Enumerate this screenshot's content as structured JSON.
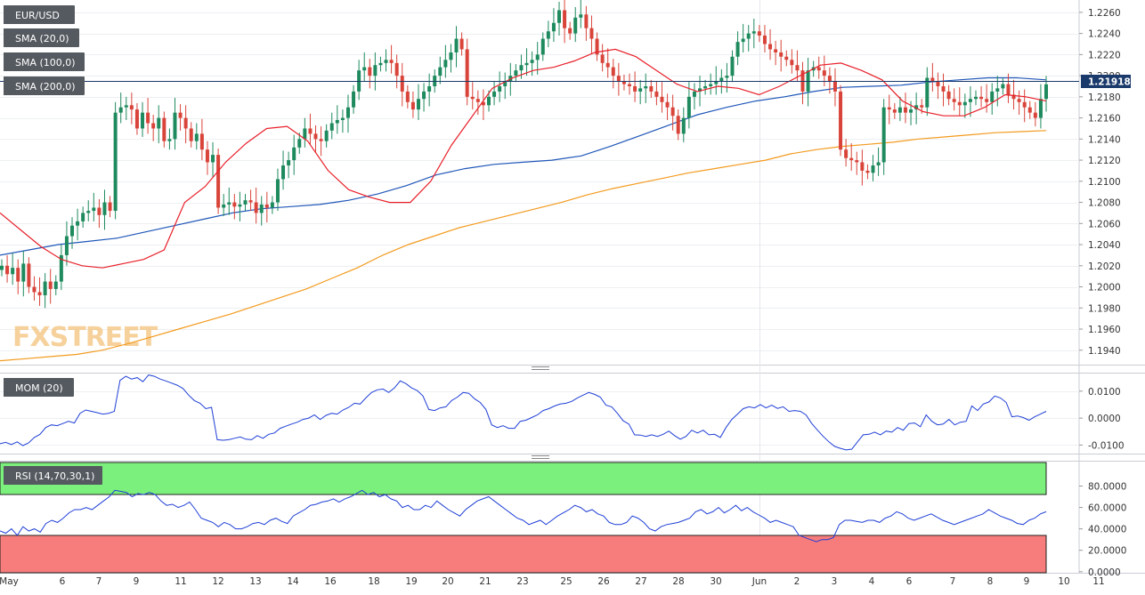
{
  "symbol_tag": "EUR/USD",
  "indicator_tags": [
    {
      "label": "SMA (20,0)",
      "color": "#e8202a"
    },
    {
      "label": "SMA (100,0)",
      "color": "#1f56b8"
    },
    {
      "label": "SMA (200,0)",
      "color": "#f39a1e"
    }
  ],
  "watermark": "FXSTREET",
  "last_price_label": "1.21918",
  "mom_tag": "MOM (20)",
  "rsi_tag": "RSI (14,70,30,1)",
  "colors": {
    "up": "#1e8a5e",
    "down": "#d9443a",
    "sma20": "#e8202a",
    "sma100": "#1f56b8",
    "sma200": "#f39a1e",
    "mom": "#1f3fd6",
    "rsi": "#1f3fd6",
    "overbought": "#7cf07c",
    "oversold": "#f77c7c",
    "price_line": "#1a3a6b"
  },
  "chart_data": [
    {
      "type": "candlestick",
      "title": "EUR/USD",
      "x_ticks": [
        "May",
        "6",
        "7",
        "9",
        "11",
        "12",
        "13",
        "14",
        "16",
        "18",
        "19",
        "20",
        "21",
        "23",
        "25",
        "26",
        "27",
        "28",
        "30",
        "Jun",
        "2",
        "3",
        "4",
        "6",
        "7",
        "8",
        "9",
        "10",
        "11"
      ],
      "y_ticks": [
        "1.2260",
        "1.2240",
        "1.2220",
        "1.2200",
        "1.2180",
        "1.2160",
        "1.2140",
        "1.2120",
        "1.2100",
        "1.2080",
        "1.2060",
        "1.2040",
        "1.2020",
        "1.2000",
        "1.1980",
        "1.1960",
        "1.1940"
      ],
      "ylim": [
        1.1928,
        1.227
      ],
      "last_price": 1.21918,
      "candles_close": [
        1.202,
        1.2012,
        1.2018,
        1.2005,
        1.2022,
        1.2,
        1.1995,
        1.1992,
        1.2005,
        1.1998,
        1.2005,
        1.203,
        1.2048,
        1.2058,
        1.2062,
        1.207,
        1.2072,
        1.2075,
        1.2068,
        1.208,
        1.2072,
        1.2165,
        1.217,
        1.2172,
        1.2168,
        1.215,
        1.2165,
        1.2155,
        1.215,
        1.216,
        1.2138,
        1.214,
        1.2165,
        1.216,
        1.215,
        1.2138,
        1.2145,
        1.213,
        1.2118,
        1.2125,
        1.2075,
        1.2078,
        1.208,
        1.2076,
        1.2078,
        1.2082,
        1.208,
        1.207,
        1.2078,
        1.2075,
        1.208,
        1.2102,
        1.2115,
        1.212,
        1.2132,
        1.214,
        1.215,
        1.2145,
        1.214,
        1.2138,
        1.2148,
        1.2155,
        1.2158,
        1.216,
        1.217,
        1.2185,
        1.2205,
        1.2208,
        1.22,
        1.221,
        1.2212,
        1.2215,
        1.2212,
        1.22,
        1.2185,
        1.2175,
        1.2168,
        1.2178,
        1.2185,
        1.219,
        1.22,
        1.2208,
        1.2215,
        1.2222,
        1.2235,
        1.2225,
        1.218,
        1.2178,
        1.2175,
        1.2172,
        1.218,
        1.2185,
        1.219,
        1.2195,
        1.22,
        1.2205,
        1.221,
        1.2212,
        1.2215,
        1.222,
        1.2235,
        1.2242,
        1.225,
        1.2262,
        1.2245,
        1.224,
        1.2255,
        1.2258,
        1.2245,
        1.2235,
        1.222,
        1.2212,
        1.2208,
        1.22,
        1.2195,
        1.2192,
        1.219,
        1.2185,
        1.2188,
        1.219,
        1.2185,
        1.218,
        1.2175,
        1.217,
        1.2162,
        1.2145,
        1.216,
        1.218,
        1.2185,
        1.2188,
        1.219,
        1.2192,
        1.2195,
        1.2198,
        1.22,
        1.2218,
        1.2232,
        1.2235,
        1.224,
        1.2242,
        1.2238,
        1.223,
        1.2225,
        1.2222,
        1.2218,
        1.2215,
        1.221,
        1.2205,
        1.2185,
        1.2205,
        1.2208,
        1.2205,
        1.22,
        1.2195,
        1.2185,
        1.213,
        1.2122,
        1.212,
        1.2118,
        1.211,
        1.2108,
        1.2115,
        1.2118,
        1.217,
        1.2168,
        1.2165,
        1.217,
        1.2165,
        1.2168,
        1.2172,
        1.217,
        1.2198,
        1.2195,
        1.219,
        1.2185,
        1.2178,
        1.2175,
        1.2172,
        1.2175,
        1.2178,
        1.218,
        1.2178,
        1.2175,
        1.2185,
        1.2188,
        1.2192,
        1.2182,
        1.2178,
        1.2175,
        1.217,
        1.2165,
        1.216,
        1.2178,
        1.21918
      ],
      "sma20": [
        1.207,
        1.2054,
        1.2038,
        1.2026,
        1.202,
        1.2018,
        1.2022,
        1.2026,
        1.2035,
        1.208,
        1.2095,
        1.2118,
        1.2136,
        1.215,
        1.2152,
        1.2138,
        1.211,
        1.2092,
        1.2085,
        1.208,
        1.208,
        1.21,
        1.2134,
        1.2161,
        1.2188,
        1.2198,
        1.2205,
        1.2208,
        1.2214,
        1.2222,
        1.2225,
        1.2218,
        1.2205,
        1.2192,
        1.2185,
        1.219,
        1.2188,
        1.2182,
        1.219,
        1.22,
        1.221,
        1.2212,
        1.2205,
        1.2196,
        1.2176,
        1.2166,
        1.2162,
        1.2162,
        1.217,
        1.2182,
        1.218,
        1.2176
      ],
      "sma100": [
        1.203,
        1.2035,
        1.204,
        1.2043,
        1.2046,
        1.2052,
        1.2058,
        1.2064,
        1.207,
        1.2074,
        1.2076,
        1.2078,
        1.2082,
        1.2088,
        1.2096,
        1.2106,
        1.2112,
        1.2116,
        1.2118,
        1.212,
        1.2124,
        1.2133,
        1.2143,
        1.2153,
        1.2163,
        1.217,
        1.2176,
        1.218,
        1.2185,
        1.2189,
        1.219,
        1.2191,
        1.2194,
        1.2196,
        1.2198,
        1.2198,
        1.2196
      ],
      "sma200": [
        1.193,
        1.1932,
        1.1934,
        1.1936,
        1.194,
        1.1946,
        1.1953,
        1.196,
        1.1967,
        1.1974,
        1.1982,
        1.199,
        1.1998,
        1.2008,
        1.2018,
        1.203,
        1.204,
        1.2048,
        1.2056,
        1.2062,
        1.2068,
        1.2074,
        1.208,
        1.2087,
        1.2093,
        1.2098,
        1.2103,
        1.2108,
        1.2112,
        1.2116,
        1.212,
        1.2126,
        1.213,
        1.2133,
        1.2135,
        1.2137,
        1.214,
        1.2142,
        1.2144,
        1.2146,
        1.2147,
        1.2148
      ]
    },
    {
      "type": "line",
      "title": "MOM (20)",
      "y_ticks": [
        "0.0100",
        "0.0000",
        "-0.0100"
      ],
      "ylim": [
        -0.0125,
        0.0162
      ],
      "values": [
        -0.0095,
        -0.009,
        -0.0098,
        -0.0088,
        -0.0102,
        -0.0092,
        -0.0072,
        -0.006,
        -0.0035,
        -0.0025,
        -0.0028,
        -0.002,
        -0.0012,
        -0.0018,
        0.0018,
        0.003,
        0.0025,
        0.002,
        0.0015,
        0.0018,
        0.0025,
        0.014,
        0.0155,
        0.0145,
        0.015,
        0.0135,
        0.016,
        0.0155,
        0.0145,
        0.0138,
        0.013,
        0.0122,
        0.011,
        0.0085,
        0.0065,
        0.0055,
        0.0035,
        0.004,
        -0.008,
        -0.0082,
        -0.008,
        -0.0075,
        -0.007,
        -0.0078,
        -0.008,
        -0.0065,
        -0.0075,
        -0.006,
        -0.0055,
        -0.0038,
        -0.003,
        -0.0022,
        -0.0015,
        -0.0005,
        0.0,
        0.0012,
        -0.0005,
        0.001,
        0.0018,
        0.0015,
        0.003,
        0.004,
        0.0055,
        0.0052,
        0.0075,
        0.0095,
        0.0105,
        0.0108,
        0.0095,
        0.0112,
        0.0138,
        0.0128,
        0.0112,
        0.0102,
        0.0082,
        0.0032,
        0.0028,
        0.0038,
        0.0042,
        0.0065,
        0.0078,
        0.0095,
        0.0092,
        0.0072,
        0.0058,
        0.0032,
        -0.0025,
        -0.0035,
        -0.0028,
        -0.0038,
        -0.0038,
        -0.0012,
        -0.0008,
        0.0002,
        0.0012,
        0.0028,
        0.0035,
        0.0045,
        0.0052,
        0.0055,
        0.0062,
        0.0075,
        0.0085,
        0.0095,
        0.0088,
        0.0078,
        0.0048,
        0.0042,
        0.0018,
        -0.001,
        -0.0022,
        -0.0062,
        -0.0063,
        -0.0068,
        -0.0062,
        -0.0068,
        -0.006,
        -0.0048,
        -0.0065,
        -0.0078,
        -0.0068,
        -0.0045,
        -0.0055,
        -0.0045,
        -0.0062,
        -0.006,
        -0.0072,
        -0.0035,
        -0.0005,
        0.0015,
        0.0035,
        0.0042,
        0.0038,
        0.005,
        0.0038,
        0.0048,
        0.0036,
        0.0042,
        0.0025,
        0.0028,
        0.0025,
        0.0012,
        -0.002,
        -0.0045,
        -0.0068,
        -0.0088,
        -0.0105,
        -0.0112,
        -0.0118,
        -0.0115,
        -0.0088,
        -0.0062,
        -0.006,
        -0.0052,
        -0.0062,
        -0.0048,
        -0.0052,
        -0.0035,
        -0.0045,
        -0.002,
        -0.0018,
        -0.0032,
        0.0012,
        -0.0012,
        -0.0025,
        -0.0022,
        -0.0005,
        -0.0025,
        -0.0015,
        -0.0012,
        0.0045,
        0.0028,
        0.0052,
        0.006,
        0.0082,
        0.0075,
        0.0058,
        0.0005,
        0.0008,
        0.0002,
        -0.0008,
        0.0005,
        0.0015,
        0.0025
      ],
      "value_min": -0.0118,
      "value_max": 0.016
    },
    {
      "type": "line",
      "title": "RSI (14,70,30,1)",
      "y_ticks": [
        "80.0000",
        "60.0000",
        "40.0000",
        "20.0000",
        "0.0000"
      ],
      "ylim": [
        -1,
        102
      ],
      "overbought": 70,
      "oversold": 30,
      "values": [
        38,
        36,
        40,
        34,
        42,
        38,
        40,
        37,
        45,
        48,
        46,
        50,
        55,
        58,
        58,
        60,
        58,
        62,
        66,
        70,
        76,
        75,
        74,
        70,
        73,
        72,
        74,
        72,
        66,
        62,
        63,
        60,
        62,
        65,
        58,
        50,
        48,
        46,
        42,
        46,
        44,
        40,
        40,
        42,
        45,
        46,
        44,
        48,
        50,
        47,
        45,
        52,
        55,
        58,
        62,
        63,
        65,
        66,
        68,
        65,
        68,
        70,
        73,
        76,
        72,
        74,
        70,
        72,
        68,
        66,
        60,
        62,
        58,
        58,
        62,
        60,
        66,
        62,
        58,
        55,
        52,
        58,
        62,
        66,
        68,
        70,
        66,
        62,
        58,
        54,
        50,
        48,
        44,
        46,
        48,
        44,
        48,
        52,
        55,
        58,
        62,
        60,
        56,
        58,
        54,
        52,
        46,
        44,
        44,
        46,
        52,
        50,
        46,
        40,
        38,
        42,
        44,
        45,
        46,
        48,
        50,
        56,
        58,
        54,
        56,
        60,
        55,
        58,
        62,
        57,
        60,
        56,
        53,
        50,
        46,
        48,
        46,
        44,
        42,
        34,
        32,
        30,
        28,
        30,
        30,
        32,
        44,
        48,
        48,
        47,
        46,
        48,
        48,
        46,
        50,
        52,
        56,
        54,
        50,
        48,
        50,
        52,
        54,
        51,
        48,
        46,
        44,
        46,
        48,
        50,
        52,
        54,
        58,
        55,
        52,
        50,
        48,
        45,
        44,
        48,
        50,
        54,
        56
      ]
    }
  ]
}
